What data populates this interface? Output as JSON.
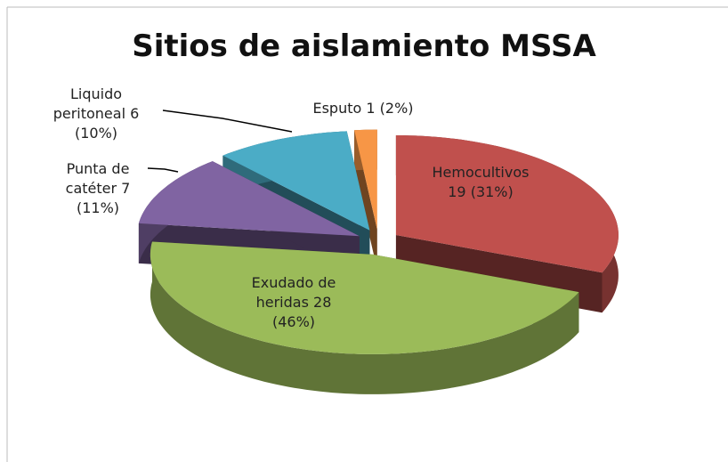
{
  "chart_data": {
    "type": "pie",
    "title": "Sitios de aislamiento MSSA",
    "categories": [
      "Hemocultivos",
      "Exudado de heridas",
      "Punta de catéter",
      "Liquido peritoneal",
      "Esputo"
    ],
    "values": [
      19,
      28,
      7,
      6,
      1
    ],
    "value_labels": [
      "19 (31%)",
      "28 (46%)",
      "7 (11%)",
      "6 (10%)",
      "1 (2%)"
    ],
    "colors": [
      "#c0504d",
      "#9bbb59",
      "#8064a2",
      "#4bacc6",
      "#f79646"
    ],
    "three_d": true,
    "exploded": true
  }
}
